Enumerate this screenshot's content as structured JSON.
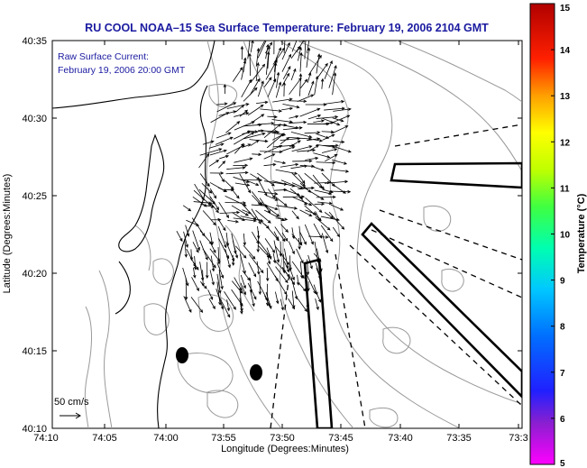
{
  "title": "RU COOL  NOAA–15  Sea Surface Temperature:  February 19, 2006 2104 GMT",
  "inset": {
    "line1": "Raw Surface Current:",
    "line2": "February 19, 2006 20:00 GMT"
  },
  "axes": {
    "xlabel": "Longitude (Degrees:Minutes)",
    "ylabel": "Latitude (Degrees:Minutes)",
    "xticks": [
      "74:10",
      "74:05",
      "74:00",
      "73:55",
      "73:50",
      "73:45",
      "73:40",
      "73:35",
      "73:3"
    ],
    "yticks": [
      "40:35",
      "40:30",
      "40:25",
      "40:20",
      "40:15",
      "40:10"
    ]
  },
  "scale": {
    "label": "50 cm/s"
  },
  "colorbar": {
    "label": "Temperature (°C)",
    "min": 5,
    "max": 15,
    "ticks": [
      "15",
      "14",
      "13",
      "12",
      "11",
      "10",
      "9",
      "8",
      "7",
      "6",
      "5"
    ],
    "colors": [
      "#ff00ff",
      "#7a00c8",
      "#0000ff",
      "#0080ff",
      "#00d0ff",
      "#00ff80",
      "#80ff00",
      "#ffff00",
      "#ffa000",
      "#ff0000",
      "#b00000"
    ]
  },
  "colors": {
    "title": "#1a1aa0",
    "land_fill": "#ffffff",
    "contour": "#999999",
    "coast": "#000000"
  }
}
